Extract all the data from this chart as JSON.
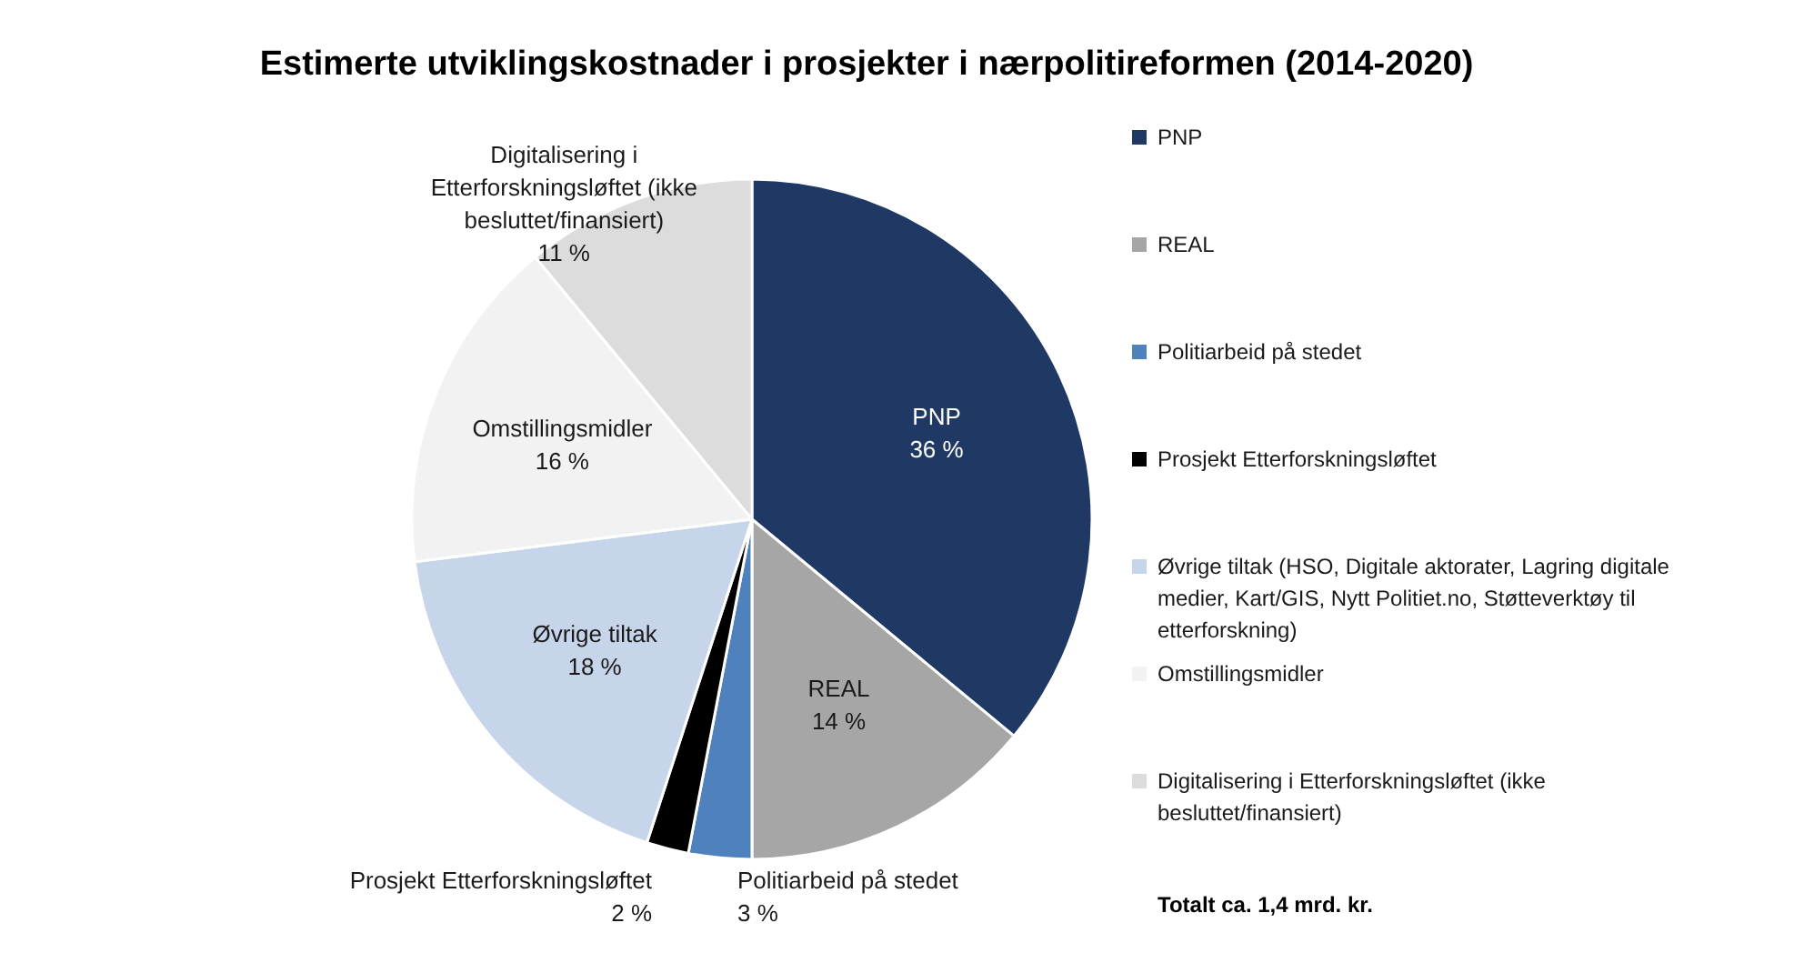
{
  "chart_data": {
    "type": "pie",
    "title": "Estimerte utviklingskostnader i prosjekter i nærpolitireformen (2014-2020)",
    "categories": [
      "PNP",
      "REAL",
      "Politiarbeid på stedet",
      "Prosjekt Etterforskningsløftet",
      "Øvrige tiltak (HSO, Digitale aktorater, Lagring digitale\nmedier, Kart/GIS, Nytt Politiet.no, Støtteverktøy til\netterforskning)",
      "Omstillingsmidler",
      "Digitalisering i Etterforskningsløftet (ikke\nbesluttet/finansiert)"
    ],
    "values": [
      36,
      14,
      3,
      2,
      18,
      16,
      11
    ],
    "colors": [
      "#1f3864",
      "#a6a6a6",
      "#4f81bd",
      "#000000",
      "#c6d5ea",
      "#f2f2f2",
      "#dcdcdc"
    ],
    "value_labels": [
      "PNP\n36 %",
      "REAL\n14 %",
      "Politiarbeid på stedet\n3 %",
      "Prosjekt Etterforskningsløftet\n2 %",
      "Øvrige tiltak\n18 %",
      "Omstillingsmidler\n16 %",
      "Digitalisering i\nEtterforskningsløftet (ikke\nbesluttet/finansiert)\n11 %"
    ],
    "legend": "right",
    "annotations": [
      "Totalt ca. 1,4 mrd. kr."
    ]
  }
}
